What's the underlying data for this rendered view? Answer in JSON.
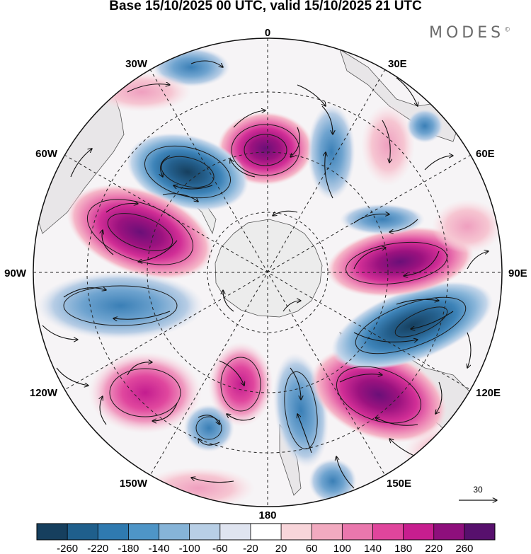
{
  "title": "Base 15/10/2025 00 UTC, valid 15/10/2025 21 UTC",
  "brand": "MODES",
  "brand_mark": "©",
  "longitude_labels": {
    "lon_0": "0",
    "lon_30e": "30E",
    "lon_60e": "60E",
    "lon_90e": "90E",
    "lon_120e": "120E",
    "lon_150e": "150E",
    "lon_180": "180",
    "lon_150w": "150W",
    "lon_120w": "120W",
    "lon_90w": "90W",
    "lon_60w": "60W",
    "lon_30w": "30W"
  },
  "reference_vector": {
    "label": "30"
  },
  "colorbar": {
    "ticks": [
      "-260",
      "-220",
      "-180",
      "-140",
      "-100",
      "-60",
      "-20",
      "20",
      "60",
      "100",
      "140",
      "180",
      "220",
      "260"
    ],
    "colors": [
      "#163f5e",
      "#1f5f8c",
      "#2f7ab0",
      "#4e95c7",
      "#86b4d8",
      "#b8cfe6",
      "#dfe4f0",
      "#ffffff",
      "#f8d5da",
      "#f2aac0",
      "#ea77ad",
      "#e0459c",
      "#c71e8f",
      "#8e0f7c",
      "#57106d"
    ]
  },
  "colors": {
    "land": "#efefef",
    "outline": "#333333"
  }
}
